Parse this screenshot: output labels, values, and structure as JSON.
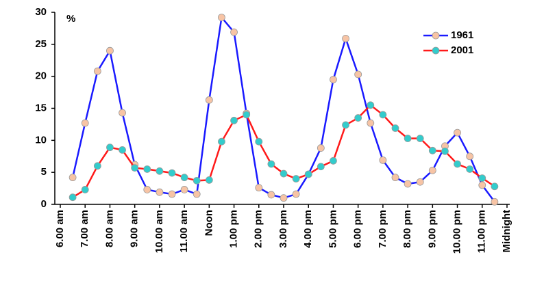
{
  "chart_data": {
    "type": "line",
    "annotation": "%",
    "categories": [
      "6.00 am",
      null,
      "7.00 am",
      null,
      "8.00 am",
      null,
      "9.00 am",
      null,
      "10.00 am",
      null,
      "11.00 am",
      null,
      "Noon",
      null,
      "1.00 pm",
      null,
      "2.00 pm",
      null,
      "3.00 pm",
      null,
      "4.00 pm",
      null,
      "5.00 pm",
      null,
      "6.00 pm",
      null,
      "7.00 pm",
      null,
      "8.00 pm",
      null,
      "9.00 pm",
      null,
      "10.00 pm",
      null,
      "11.00 pm",
      null,
      "Midnight"
    ],
    "series": [
      {
        "name": "1961",
        "color": "#1a1aff",
        "marker_color": "#f7c4a5",
        "values": [
          null,
          4.2,
          12.7,
          20.8,
          24,
          14.3,
          6.2,
          2.3,
          1.9,
          1.6,
          2.3,
          1.6,
          16.3,
          29.2,
          26.9,
          14.2,
          2.6,
          1.5,
          1.0,
          1.6,
          4.7,
          8.8,
          19.5,
          25.9,
          20.3,
          12.7,
          6.9,
          4.2,
          3.2,
          3.5,
          5.3,
          9.1,
          11.2,
          7.5,
          3.0,
          0.4,
          null
        ]
      },
      {
        "name": "2001",
        "color": "#ff1a1a",
        "marker_color": "#33cccc",
        "values": [
          null,
          1.1,
          2.3,
          6.0,
          8.9,
          8.5,
          5.7,
          5.5,
          5.2,
          4.9,
          4.2,
          3.7,
          3.8,
          9.8,
          13.1,
          14.0,
          9.8,
          6.3,
          4.8,
          4.0,
          4.7,
          5.9,
          6.8,
          12.4,
          13.5,
          15.5,
          14.0,
          11.9,
          10.3,
          10.3,
          8.4,
          8.3,
          6.3,
          5.5,
          4.1,
          2.8,
          null
        ]
      }
    ],
    "ylim": [
      0,
      30
    ],
    "yticks": [
      0,
      5,
      10,
      15,
      20,
      25,
      30
    ],
    "legend": "top-right"
  }
}
